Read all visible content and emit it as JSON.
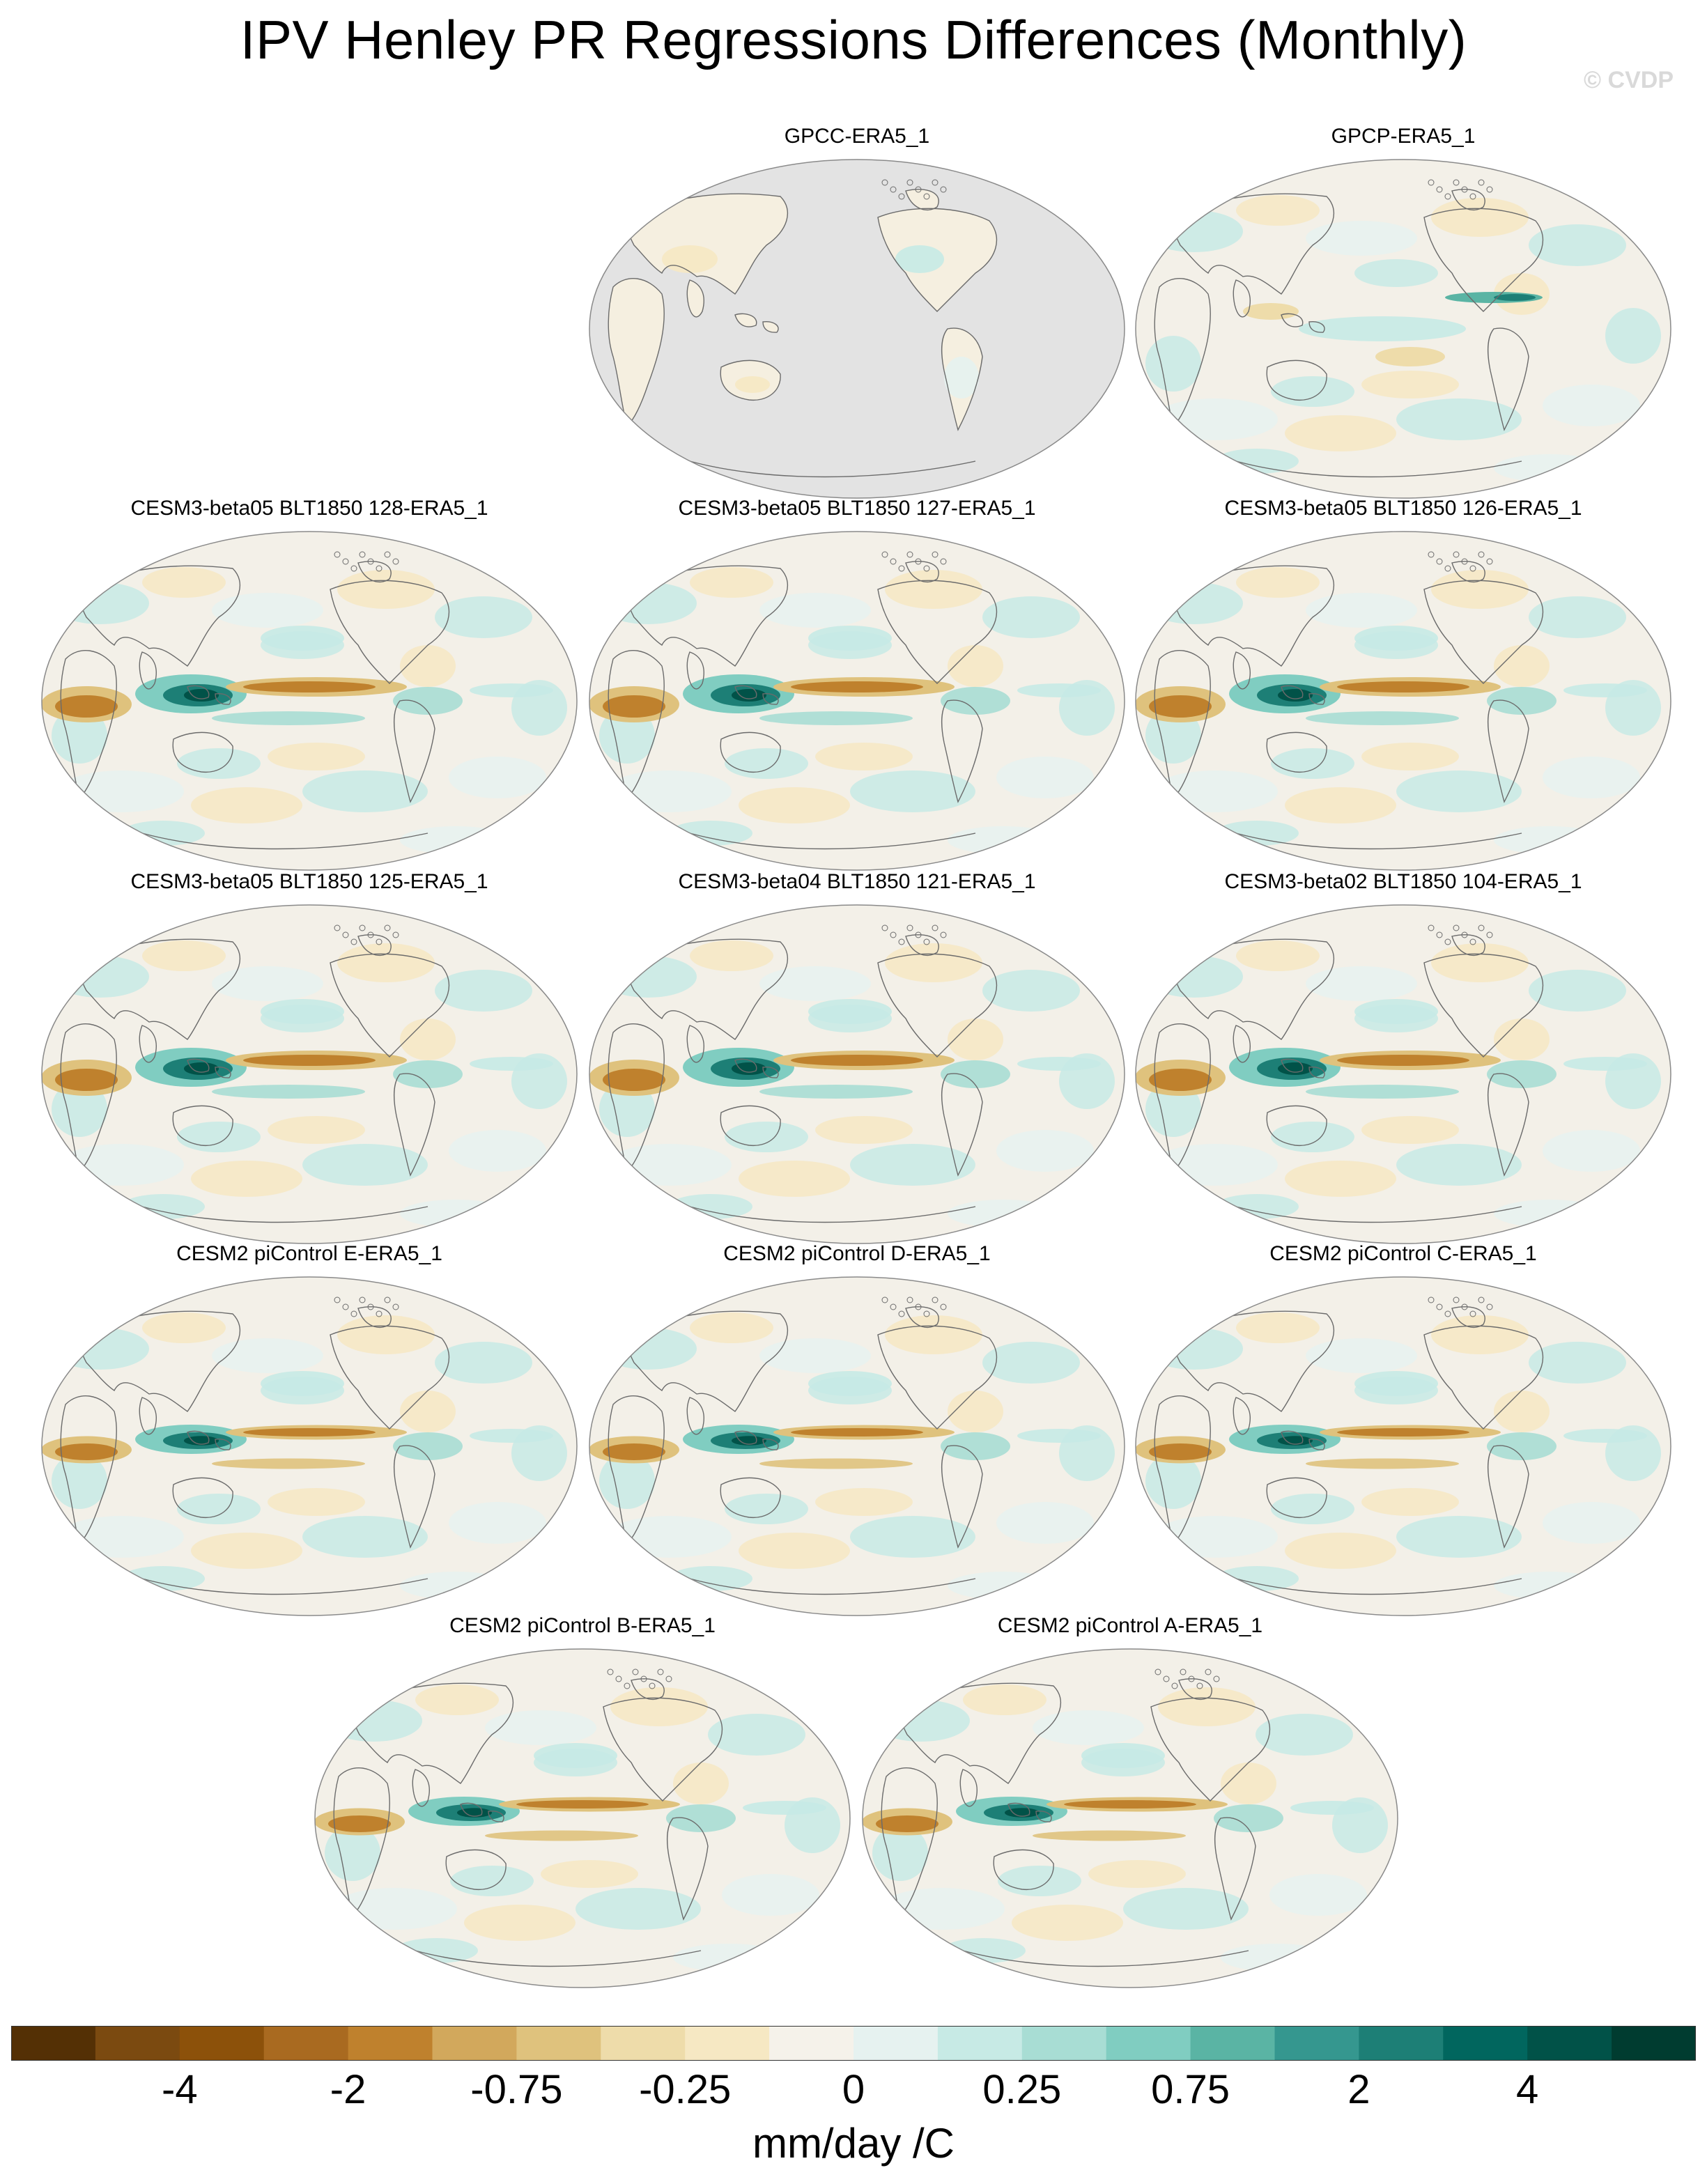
{
  "title": "IPV Henley PR Regressions Differences (Monthly)",
  "watermark": "© CVDP",
  "panels": [
    {
      "title": "GPCC-ERA5_1",
      "variant": "gpcc"
    },
    {
      "title": "GPCP-ERA5_1",
      "variant": "gpcp"
    },
    {
      "title": "CESM3-beta05 BLT1850 128-ERA5_1",
      "variant": "cesm3"
    },
    {
      "title": "CESM3-beta05 BLT1850 127-ERA5_1",
      "variant": "cesm3"
    },
    {
      "title": "CESM3-beta05 BLT1850 126-ERA5_1",
      "variant": "cesm3"
    },
    {
      "title": "CESM3-beta05 BLT1850 125-ERA5_1",
      "variant": "cesm3"
    },
    {
      "title": "CESM3-beta04 BLT1850 121-ERA5_1",
      "variant": "cesm3"
    },
    {
      "title": "CESM3-beta02 BLT1850 104-ERA5_1",
      "variant": "cesm3"
    },
    {
      "title": "CESM2 piControl E-ERA5_1",
      "variant": "cesm2"
    },
    {
      "title": "CESM2 piControl D-ERA5_1",
      "variant": "cesm2"
    },
    {
      "title": "CESM2 piControl C-ERA5_1",
      "variant": "cesm2"
    },
    {
      "title": "CESM2 piControl B-ERA5_1",
      "variant": "cesm2"
    },
    {
      "title": "CESM2 piControl A-ERA5_1",
      "variant": "cesm2"
    }
  ],
  "colorbar": {
    "colors": [
      "#543005",
      "#7b4a10",
      "#8c510a",
      "#a96a20",
      "#bf812d",
      "#d2a85c",
      "#dfc27d",
      "#eedcaa",
      "#f6e8c3",
      "#f5f2ea",
      "#e6f2f0",
      "#c7eae5",
      "#a8ddd4",
      "#80cdc1",
      "#5ab4a4",
      "#35978f",
      "#1d7f76",
      "#01665e",
      "#015248",
      "#003c30"
    ],
    "labels": [
      "-4",
      "-2",
      "-0.75",
      "-0.25",
      "0",
      "0.25",
      "0.75",
      "2",
      "4"
    ],
    "units": "mm/day /C"
  }
}
